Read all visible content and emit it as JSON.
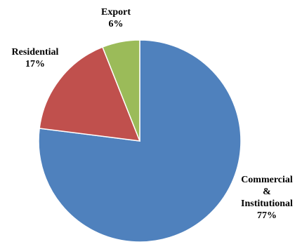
{
  "chart_data": {
    "type": "pie",
    "title": "",
    "slices": [
      {
        "label": "Commercial & Institutional",
        "label_lines": [
          "Commercial",
          "&",
          "Institutional"
        ],
        "percent_text": "77%",
        "value": 77,
        "color": "#4f81bd"
      },
      {
        "label": "Residential",
        "label_lines": [
          "Residential"
        ],
        "percent_text": "17%",
        "value": 17,
        "color": "#c0504d"
      },
      {
        "label": "Export",
        "label_lines": [
          "Export"
        ],
        "percent_text": "6%",
        "value": 6,
        "color": "#9bbb59"
      }
    ]
  }
}
